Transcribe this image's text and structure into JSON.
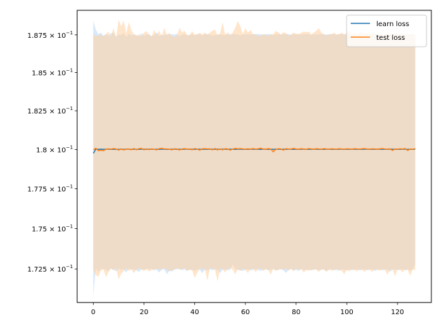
{
  "chart_data": {
    "type": "line",
    "title": "",
    "xlabel": "",
    "ylabel": "",
    "yscale": "log",
    "xlim": [
      -6.35,
      133.35
    ],
    "ylim": [
      0.17045,
      0.18915
    ],
    "x_ticks": [
      0,
      20,
      40,
      60,
      80,
      100,
      120
    ],
    "x_tick_labels": [
      "0",
      "20",
      "40",
      "60",
      "80",
      "100",
      "120"
    ],
    "y_ticks": [
      0.1725,
      0.175,
      0.1775,
      0.18,
      0.1825,
      0.185,
      0.1875
    ],
    "y_tick_mantissas": [
      "1.725",
      "1.75",
      "1.775",
      "1.8",
      "1.825",
      "1.85",
      "1.875"
    ],
    "y_tick_exponent_base": "10",
    "y_tick_exponent": "−1",
    "grid": false,
    "legend_location": "upper right",
    "x": "0..127 step 1",
    "series": [
      {
        "name": "learn loss",
        "color": "#1f77b4",
        "band_color": "#b9d7f5",
        "mean_values": [
          0.17975,
          0.18002,
          0.18001,
          0.18002,
          0.18001,
          0.18002,
          0.18002,
          0.18001,
          0.18002,
          0.18001,
          0.18001,
          0.18002,
          0.18001,
          0.18002,
          0.18002,
          0.18001,
          0.18002,
          0.18001,
          0.18001,
          0.18002,
          0.18002,
          0.18001,
          0.18002,
          0.18002,
          0.18001,
          0.18002,
          0.18001,
          0.18002,
          0.18002,
          0.18001,
          0.18001,
          0.18002,
          0.18002,
          0.18001,
          0.18002,
          0.18001,
          0.18002,
          0.18002,
          0.18001,
          0.18002,
          0.18001,
          0.18002,
          0.18002,
          0.18001,
          0.18002,
          0.18001,
          0.18002,
          0.18002,
          0.18001,
          0.18002,
          0.18001,
          0.18002,
          0.18002,
          0.18001,
          0.18002,
          0.18002,
          0.18001,
          0.18002,
          0.18002,
          0.18001,
          0.18002,
          0.18001,
          0.18002,
          0.18002,
          0.18001,
          0.18002,
          0.18001,
          0.18002,
          0.18002,
          0.18001,
          0.18002,
          0.18001,
          0.18002,
          0.18002,
          0.18001,
          0.18002,
          0.18001,
          0.18002,
          0.18002,
          0.18001,
          0.18002,
          0.18001,
          0.18002,
          0.18002,
          0.18001,
          0.18002,
          0.18001,
          0.18002,
          0.18002,
          0.18001,
          0.18002,
          0.18001,
          0.18002,
          0.18002,
          0.18001,
          0.18002,
          0.18001,
          0.18002,
          0.18002,
          0.18001,
          0.18002,
          0.18001,
          0.18002,
          0.18002,
          0.18001,
          0.18002,
          0.18001,
          0.18002,
          0.18002,
          0.18001,
          0.18002,
          0.18001,
          0.18002,
          0.18002,
          0.18001,
          0.18002,
          0.18001,
          0.18002,
          0.18002,
          0.18001,
          0.18002,
          0.18001,
          0.18002,
          0.18002,
          0.18001,
          0.18002,
          0.18001,
          0.18002
        ],
        "upper_values": [
          0.18845,
          0.18785,
          0.18755,
          0.18765,
          0.18745,
          0.18755,
          0.18742,
          0.18762,
          0.18765,
          0.18738,
          0.18752,
          0.18748,
          0.18762,
          0.18735,
          0.18758,
          0.18745,
          0.18755,
          0.18748,
          0.18738,
          0.18762,
          0.18745,
          0.18752,
          0.18755,
          0.18742,
          0.18748,
          0.18768,
          0.18742,
          0.18752,
          0.18746,
          0.18755,
          0.18752,
          0.18755,
          0.18752,
          0.18758,
          0.18742,
          0.18751,
          0.18755,
          0.18746,
          0.18752,
          0.18755,
          0.18748,
          0.18752,
          0.18755,
          0.18746,
          0.18755,
          0.18755,
          0.18752,
          0.18745,
          0.18748,
          0.18752,
          0.18755,
          0.18748,
          0.18752,
          0.18752,
          0.18755,
          0.18755,
          0.18755,
          0.18752,
          0.18745,
          0.18755,
          0.18752,
          0.18755,
          0.18752,
          0.18755,
          0.18755,
          0.18755,
          0.18755,
          0.18752,
          0.18755,
          0.18755,
          0.18755,
          0.18748,
          0.18752,
          0.18755,
          0.18752,
          0.18755,
          0.18755,
          0.18755,
          0.18752,
          0.18755,
          0.18752,
          0.18755,
          0.18752,
          0.18755,
          0.18755,
          0.18755,
          0.18748,
          0.18755,
          0.18752,
          0.18755,
          0.18755,
          0.18755,
          0.18752,
          0.18755,
          0.18755,
          0.18755,
          0.18752,
          0.18755,
          0.18755,
          0.18752,
          0.18755,
          0.18755,
          0.18752,
          0.18755,
          0.18752,
          0.18755,
          0.18748,
          0.18755,
          0.18752,
          0.18755,
          0.18752,
          0.18755,
          0.18755,
          0.18752,
          0.18755,
          0.18755,
          0.18752,
          0.18755,
          0.18755,
          0.18752,
          0.18755,
          0.18752,
          0.18755,
          0.18755,
          0.18752,
          0.18755,
          0.18755,
          0.18745
        ],
        "lower_values": [
          0.17085,
          0.17255,
          0.17232,
          0.17252,
          0.17248,
          0.17245,
          0.17238,
          0.17252,
          0.17245,
          0.17235,
          0.17252,
          0.17245,
          0.17248,
          0.17228,
          0.17252,
          0.17245,
          0.17248,
          0.17242,
          0.17232,
          0.17248,
          0.17245,
          0.17252,
          0.17248,
          0.17252,
          0.17242,
          0.17245,
          0.17228,
          0.17245,
          0.17248,
          0.17218,
          0.17238,
          0.17235,
          0.17245,
          0.17248,
          0.17252,
          0.17242,
          0.17248,
          0.17238,
          0.17245,
          0.17245,
          0.17238,
          0.17248,
          0.17245,
          0.17225,
          0.17245,
          0.17242,
          0.17248,
          0.17242,
          0.17248,
          0.17245,
          0.17225,
          0.17245,
          0.17248,
          0.17242,
          0.17245,
          0.17278,
          0.17248,
          0.17245,
          0.17242,
          0.17238,
          0.17245,
          0.17248,
          0.17242,
          0.17245,
          0.17248,
          0.17245,
          0.17238,
          0.17245,
          0.17248,
          0.17242,
          0.17245,
          0.17248,
          0.17242,
          0.17245,
          0.17248,
          0.17242,
          0.17225,
          0.17245,
          0.17248,
          0.17242,
          0.17245,
          0.17238,
          0.17248,
          0.17245,
          0.17242,
          0.17248,
          0.17242,
          0.17245,
          0.17248,
          0.17242,
          0.17245,
          0.17248,
          0.17238,
          0.17245,
          0.17248,
          0.17242,
          0.17245,
          0.17238,
          0.17248,
          0.17245,
          0.17242,
          0.17248,
          0.17242,
          0.17245,
          0.17248,
          0.17242,
          0.17245,
          0.17248,
          0.17242,
          0.17245,
          0.17248,
          0.17238,
          0.17245,
          0.17248,
          0.17242,
          0.17245,
          0.17248,
          0.17232,
          0.17245,
          0.17248,
          0.17242,
          0.17245,
          0.17248,
          0.17242,
          0.17245,
          0.17242,
          0.17248,
          0.17278
        ]
      },
      {
        "name": "test loss",
        "color": "#ff7f0e",
        "band_color": "#ffcf9f",
        "mean_values": [
          0.17998,
          0.18008,
          0.17992,
          0.17995,
          0.17992,
          0.18002,
          0.18004,
          0.18002,
          0.18006,
          0.18003,
          0.17996,
          0.18004,
          0.17997,
          0.18003,
          0.18003,
          0.17998,
          0.18006,
          0.17998,
          0.18005,
          0.18007,
          0.17998,
          0.18004,
          0.17999,
          0.18004,
          0.18001,
          0.17998,
          0.18005,
          0.18007,
          0.18004,
          0.18003,
          0.18002,
          0.17998,
          0.18004,
          0.18003,
          0.17997,
          0.18003,
          0.18005,
          0.18002,
          0.18003,
          0.17998,
          0.18006,
          0.18002,
          0.17996,
          0.18004,
          0.18005,
          0.18003,
          0.18004,
          0.17998,
          0.18006,
          0.17997,
          0.18004,
          0.17998,
          0.18005,
          0.18003,
          0.17996,
          0.18002,
          0.18007,
          0.18004,
          0.18006,
          0.18003,
          0.18002,
          0.18004,
          0.18002,
          0.18006,
          0.18002,
          0.18004,
          0.18008,
          0.18003,
          0.18002,
          0.18005,
          0.18003,
          0.17985,
          0.18001,
          0.18005,
          0.18003,
          0.17996,
          0.18005,
          0.18002,
          0.18003,
          0.18007,
          0.18003,
          0.18002,
          0.18005,
          0.18003,
          0.18001,
          0.18006,
          0.18003,
          0.18002,
          0.18005,
          0.18003,
          0.18002,
          0.18005,
          0.18003,
          0.18002,
          0.18004,
          0.18003,
          0.18002,
          0.18005,
          0.18003,
          0.18002,
          0.18004,
          0.18003,
          0.18002,
          0.18005,
          0.18003,
          0.18002,
          0.18004,
          0.18006,
          0.18003,
          0.18002,
          0.18004,
          0.18003,
          0.18002,
          0.18004,
          0.18006,
          0.18003,
          0.18002,
          0.18004,
          0.17994,
          0.18003,
          0.18002,
          0.18004,
          0.18003,
          0.18006,
          0.17994,
          0.18003,
          0.18002,
          0.18005
        ],
        "upper_values": [
          0.18755,
          0.18742,
          0.18748,
          0.18752,
          0.18738,
          0.18755,
          0.18772,
          0.18738,
          0.18795,
          0.18732,
          0.18852,
          0.18808,
          0.18845,
          0.18758,
          0.18835,
          0.18782,
          0.18752,
          0.18745,
          0.18755,
          0.18738,
          0.18765,
          0.18775,
          0.18752,
          0.18738,
          0.18785,
          0.18748,
          0.18778,
          0.18738,
          0.18798,
          0.18748,
          0.18765,
          0.18742,
          0.18738,
          0.18745,
          0.18798,
          0.18765,
          0.18778,
          0.18752,
          0.18745,
          0.18775,
          0.18752,
          0.18755,
          0.18765,
          0.18752,
          0.18765,
          0.18752,
          0.18765,
          0.18778,
          0.18785,
          0.18748,
          0.18758,
          0.18835,
          0.18752,
          0.18768,
          0.18748,
          0.18765,
          0.18798,
          0.18842,
          0.18808,
          0.18755,
          0.18795,
          0.18765,
          0.18782,
          0.18755,
          0.18752,
          0.18745,
          0.18742,
          0.18755,
          0.18752,
          0.18745,
          0.18752,
          0.18755,
          0.18775,
          0.18768,
          0.18752,
          0.18768,
          0.18762,
          0.18745,
          0.18752,
          0.18765,
          0.18758,
          0.18755,
          0.18765,
          0.18772,
          0.18768,
          0.18772,
          0.18755,
          0.18765,
          0.18778,
          0.18795,
          0.18765,
          0.18752,
          0.18748,
          0.18752,
          0.18755,
          0.18765,
          0.18752,
          0.18755,
          0.18765,
          0.18752,
          0.18765,
          0.18778,
          0.18755,
          0.18765,
          0.18752,
          0.18765,
          0.18772,
          0.18755,
          0.18765,
          0.18758,
          0.18755,
          0.18765,
          0.18748,
          0.18765,
          0.18755,
          0.18752,
          0.18772,
          0.18755,
          0.18752,
          0.18765,
          0.18755,
          0.18752,
          0.18758,
          0.18755,
          0.18755,
          0.18752,
          0.18755,
          0.18752
        ],
        "lower_values": [
          0.17245,
          0.17212,
          0.17202,
          0.17238,
          0.17248,
          0.17198,
          0.17232,
          0.17252,
          0.17242,
          0.17258,
          0.17185,
          0.17222,
          0.17235,
          0.17255,
          0.17238,
          0.17248,
          0.17225,
          0.17245,
          0.17255,
          0.17245,
          0.17238,
          0.17248,
          0.17235,
          0.17242,
          0.17248,
          0.17252,
          0.17245,
          0.17248,
          0.17255,
          0.17245,
          0.17235,
          0.17242,
          0.17248,
          0.17255,
          0.17245,
          0.17248,
          0.17255,
          0.17238,
          0.17245,
          0.17242,
          0.17195,
          0.17225,
          0.17252,
          0.17248,
          0.17252,
          0.17178,
          0.17255,
          0.17252,
          0.17245,
          0.17175,
          0.17252,
          0.17248,
          0.17228,
          0.17252,
          0.17255,
          0.17245,
          0.17218,
          0.17248,
          0.17238,
          0.17252,
          0.17245,
          0.17225,
          0.17248,
          0.17252,
          0.17232,
          0.17248,
          0.17255,
          0.17238,
          0.17248,
          0.17245,
          0.17215,
          0.17252,
          0.17238,
          0.17245,
          0.17248,
          0.17245,
          0.17252,
          0.17238,
          0.17255,
          0.17235,
          0.17252,
          0.17245,
          0.17248,
          0.17228,
          0.17245,
          0.17238,
          0.17245,
          0.17248,
          0.17245,
          0.17232,
          0.17248,
          0.17245,
          0.17232,
          0.17248,
          0.17238,
          0.17245,
          0.17248,
          0.17245,
          0.17238,
          0.17218,
          0.17245,
          0.17235,
          0.17248,
          0.17245,
          0.17235,
          0.17248,
          0.17245,
          0.17232,
          0.17248,
          0.17245,
          0.17232,
          0.17248,
          0.17245,
          0.17238,
          0.17248,
          0.17245,
          0.17215,
          0.17245,
          0.17248,
          0.17205,
          0.17248,
          0.17245,
          0.17228,
          0.17248,
          0.17245,
          0.17208,
          0.17245,
          0.17245
        ]
      }
    ]
  }
}
